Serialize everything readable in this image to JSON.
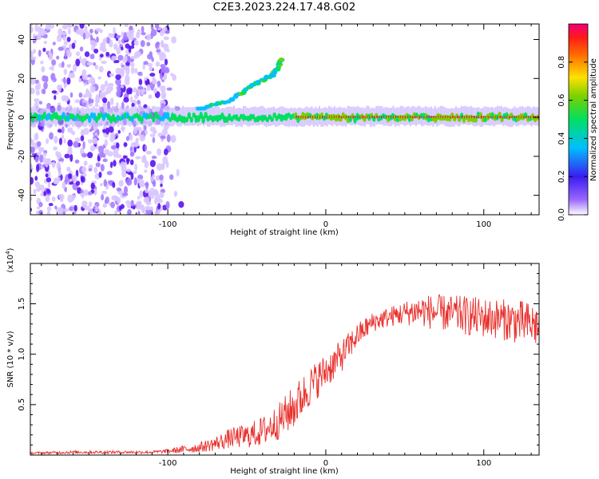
{
  "figure": {
    "title": "C2E3.2023.224.17.48.G02"
  },
  "colors": {
    "snr_line": "#e8302c",
    "axis": "#000000"
  },
  "chart_data": [
    {
      "type": "heatmap",
      "xlabel": "Height of straight line (km)",
      "ylabel": "Frequency (Hz)",
      "xlim": [
        -187,
        135
      ],
      "ylim": [
        -50,
        48
      ],
      "x_ticks": [
        -100,
        0,
        100
      ],
      "y_ticks": [
        -40,
        -20,
        0,
        20,
        40
      ],
      "x_tick_labels": [
        "-100",
        "0",
        "100"
      ],
      "y_tick_labels": [
        "-40",
        "-20",
        "0",
        "20",
        "40"
      ],
      "grid": false,
      "colorbar": {
        "label": "Normalized spectral amplitude",
        "range": [
          0,
          1
        ],
        "ticks": [
          0.0,
          0.2,
          0.4,
          0.6,
          0.8
        ],
        "tick_labels": [
          "0.0",
          "0.2",
          "0.4",
          "0.6",
          "0.8"
        ],
        "colormap": "rainbow (white → violet → blue → cyan → green → yellow → red → magenta)"
      },
      "features": [
        {
          "name": "carrier",
          "x_range": [
            -187,
            135
          ],
          "freq_hz": 0
        },
        {
          "name": "noise band",
          "x_range": [
            -187,
            -100
          ],
          "freq_range": [
            -50,
            48
          ]
        },
        {
          "name": "rising branch",
          "points": [
            [
              -80,
              4
            ],
            [
              -60,
              9
            ],
            [
              -45,
              17
            ],
            [
              -33,
              22
            ],
            [
              -27,
              31
            ]
          ]
        }
      ]
    },
    {
      "type": "line",
      "xlabel": "Height of straight line (km)",
      "ylabel": "SNR (10 * v/v)",
      "y_multiplier": "(x10^4)",
      "xlim": [
        -187,
        135
      ],
      "ylim": [
        0,
        1.9
      ],
      "x_ticks": [
        -100,
        0,
        100
      ],
      "y_ticks": [
        0.5,
        1.0,
        1.5
      ],
      "x_tick_labels": [
        "-100",
        "0",
        "100"
      ],
      "y_tick_labels": [
        "0.5",
        "1.0",
        "1.5"
      ],
      "grid": false,
      "series": [
        {
          "x": [
            -187,
            -160,
            -130,
            -110,
            -100,
            -90,
            -80,
            -70,
            -60,
            -50,
            -40,
            -30,
            -20,
            -10,
            0,
            10,
            20,
            30,
            40,
            50,
            60,
            70,
            80,
            90,
            100,
            110,
            120,
            135
          ],
          "values": [
            0.02,
            0.03,
            0.03,
            0.03,
            0.04,
            0.06,
            0.08,
            0.12,
            0.18,
            0.2,
            0.25,
            0.35,
            0.5,
            0.7,
            0.85,
            1.0,
            1.2,
            1.33,
            1.38,
            1.42,
            1.45,
            1.43,
            1.42,
            1.4,
            1.38,
            1.37,
            1.35,
            1.3
          ],
          "noise": [
            0.01,
            0.015,
            0.015,
            0.015,
            0.02,
            0.04,
            0.05,
            0.07,
            0.1,
            0.12,
            0.15,
            0.18,
            0.22,
            0.2,
            0.18,
            0.16,
            0.12,
            0.1,
            0.1,
            0.12,
            0.16,
            0.18,
            0.18,
            0.2,
            0.2,
            0.2,
            0.22,
            0.22
          ]
        }
      ]
    }
  ]
}
